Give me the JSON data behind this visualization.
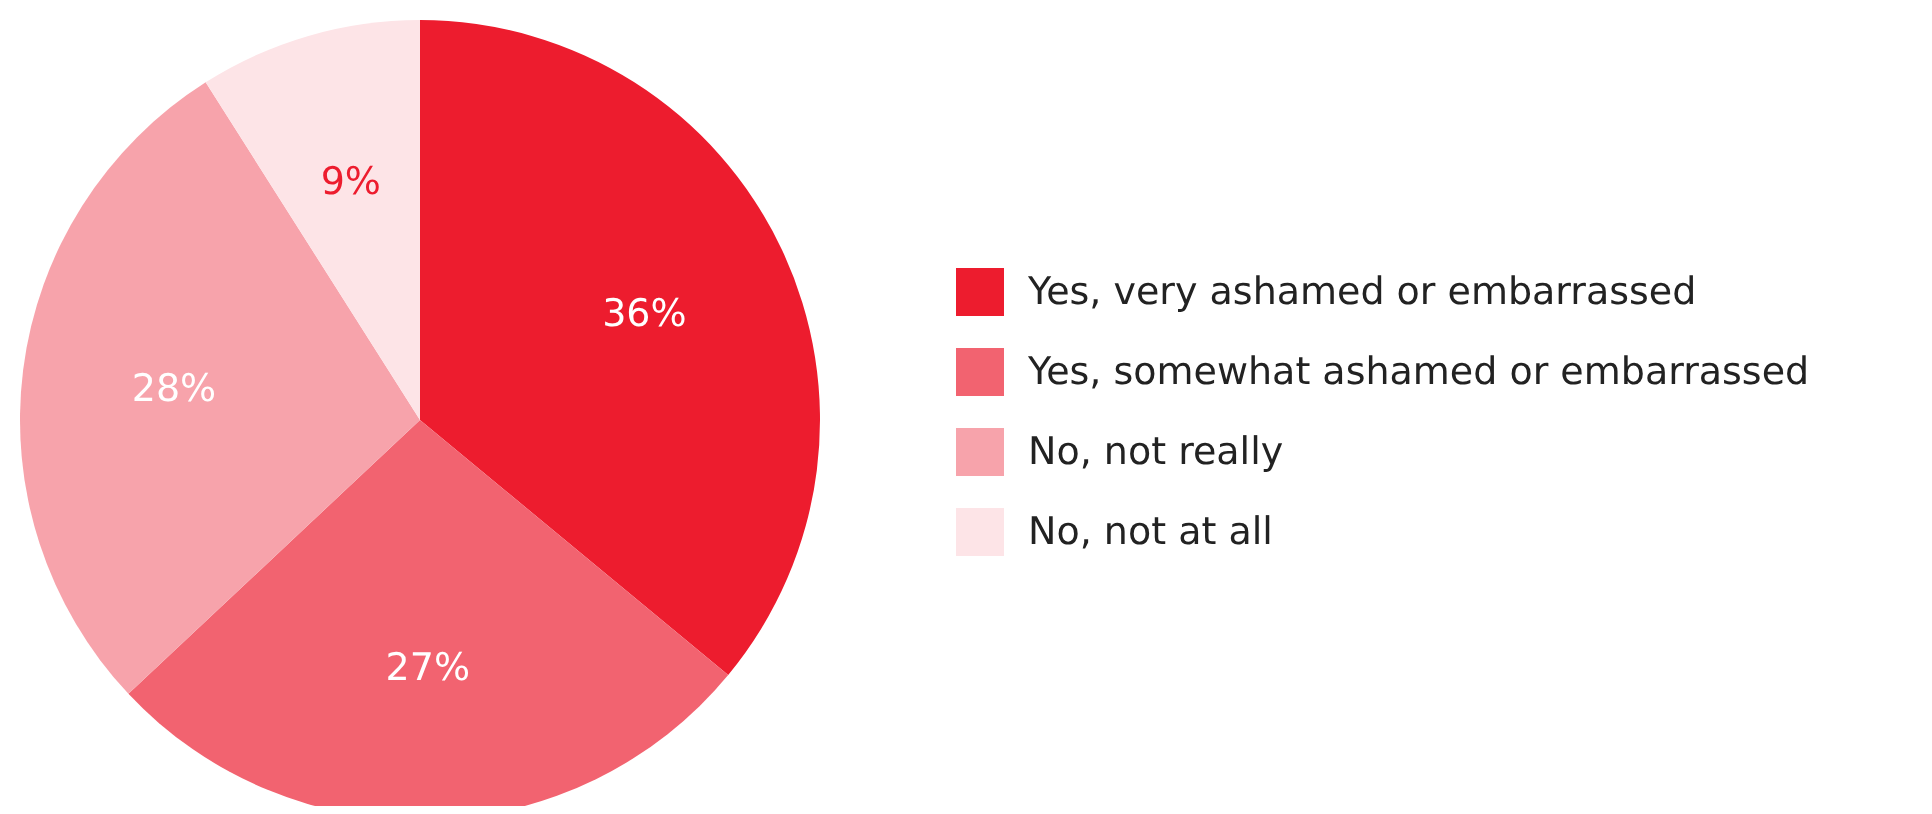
{
  "chart_data": {
    "type": "pie",
    "categories": [
      "Yes, very ashamed or embarrassed",
      "Yes, somewhat ashamed or embarrassed",
      "No, not really",
      "No, not at all"
    ],
    "values": [
      36,
      27,
      28,
      9
    ],
    "colors": [
      "#ed1c2e",
      "#f26370",
      "#f7a3ab",
      "#fde4e7"
    ],
    "value_labels": [
      "36%",
      "27%",
      "28%",
      "9%"
    ],
    "legend": "right"
  }
}
